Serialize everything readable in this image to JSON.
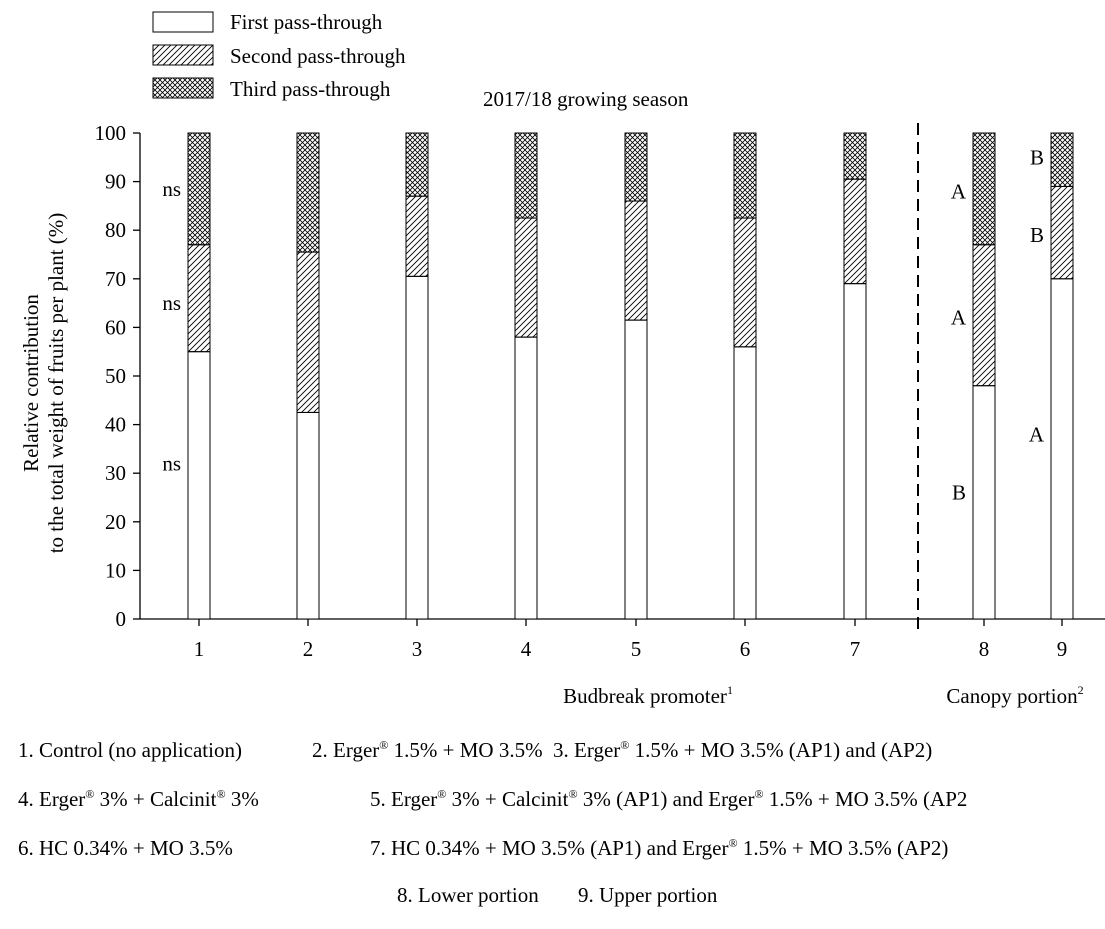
{
  "chart_data": {
    "type": "bar",
    "stacked": true,
    "title": "2017/18 growing season",
    "ylabel_line1": "Relative contribution",
    "ylabel_line2": "to the total weight of fruits per plant (%)",
    "ylim": [
      0,
      100
    ],
    "yticks": [
      "0",
      "10",
      "20",
      "30",
      "40",
      "50",
      "60",
      "70",
      "80",
      "90",
      "100"
    ],
    "categories": [
      "1",
      "2",
      "3",
      "4",
      "5",
      "6",
      "7",
      "8",
      "9"
    ],
    "group_labels": [
      {
        "text": "Budbreak promoter",
        "sup": "1"
      },
      {
        "text": "Canopy portion",
        "sup": "2"
      }
    ],
    "legend_position": "top-left",
    "series": [
      {
        "name": "First pass-through",
        "pattern": "none",
        "values": [
          55,
          42.5,
          70.5,
          58,
          61.5,
          56,
          69,
          48,
          70
        ]
      },
      {
        "name": "Second pass-through",
        "pattern": "hatch",
        "values": [
          22,
          33,
          16.5,
          24.5,
          24.5,
          26.5,
          21.5,
          29,
          19
        ]
      },
      {
        "name": "Third pass-through",
        "pattern": "crosshatch",
        "values": [
          23,
          24.5,
          13,
          17.5,
          14,
          17.5,
          9.5,
          23,
          11
        ]
      }
    ],
    "annotations": [
      {
        "text": "ns",
        "bar": 0,
        "y": 32
      },
      {
        "text": "ns",
        "bar": 0,
        "y": 65
      },
      {
        "text": "ns",
        "bar": 0,
        "y": 88.5
      },
      {
        "text": "B",
        "bar": 7,
        "y": 26
      },
      {
        "text": "A",
        "bar": 7,
        "y": 62
      },
      {
        "text": "A",
        "bar": 7,
        "y": 88
      },
      {
        "text": "A",
        "bar": 8,
        "y": 38
      },
      {
        "text": "B",
        "bar": 8,
        "y": 79
      },
      {
        "text": "B",
        "bar": 8,
        "y": 95
      }
    ]
  },
  "footnotes": {
    "row1": [
      {
        "text": "1. Control (no application)"
      },
      {
        "parts": [
          "2. Erger",
          "®",
          " 1.5% + MO 3.5%"
        ]
      },
      {
        "parts": [
          "3. Erger",
          "®",
          " 1.5% + MO 3.5% (AP1) and (AP2)"
        ]
      }
    ],
    "row2": [
      {
        "parts": [
          "4. Erger",
          "®",
          " 3% + Calcinit",
          "®",
          " 3%"
        ]
      },
      {
        "parts": [
          "5. Erger",
          "®",
          " 3% + Calcinit",
          "®",
          " 3% (AP1) and Erger",
          "®",
          " 1.5% + MO 3.5% (AP2"
        ]
      }
    ],
    "row3": [
      {
        "text": "6. HC 0.34% + MO 3.5%"
      },
      {
        "parts": [
          "7. HC 0.34% + MO 3.5% (AP1) and Erger",
          "®",
          " 1.5% + MO 3.5% (AP2)"
        ]
      }
    ],
    "row4": [
      {
        "text": "8. Lower portion"
      },
      {
        "text": "9. Upper portion"
      }
    ]
  }
}
